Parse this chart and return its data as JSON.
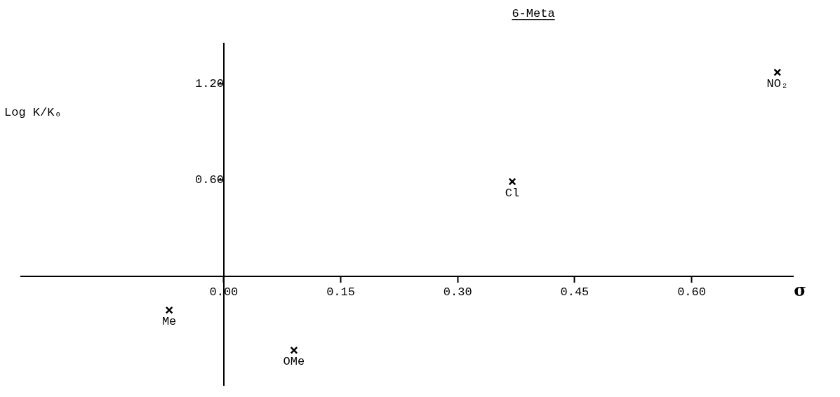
{
  "chart_data": {
    "type": "scatter",
    "title": "6-Meta",
    "xlabel": "σ",
    "ylabel": "Log K/K₀",
    "x": [
      -0.07,
      0.09,
      0.37,
      0.71
    ],
    "values": [
      -0.21,
      -0.46,
      0.59,
      1.27
    ],
    "color": "#000000",
    "marker": "cross",
    "grid": false,
    "legend": false,
    "xlim": [
      -0.26,
      0.73
    ],
    "ylim": [
      -0.68,
      1.45
    ],
    "xticks": [
      {
        "value": 0,
        "label": "0.00"
      },
      0.15,
      {
        "value": 0.3,
        "label": "0.30"
      },
      0.45,
      {
        "value": 0.6,
        "label": "0.60"
      }
    ],
    "yticks": [
      {
        "value": 0.6,
        "label": "0.60"
      },
      {
        "value": 1.2,
        "label": "1.20"
      }
    ],
    "annotations": [
      {
        "text": "Me",
        "x": -0.07,
        "y": -0.21
      },
      {
        "text": "OMe",
        "x": 0.09,
        "y": -0.46
      },
      {
        "text": "Cl",
        "x": 0.37,
        "y": 0.59
      },
      {
        "text": "NO₂",
        "x": 0.71,
        "y": 1.27
      }
    ]
  }
}
